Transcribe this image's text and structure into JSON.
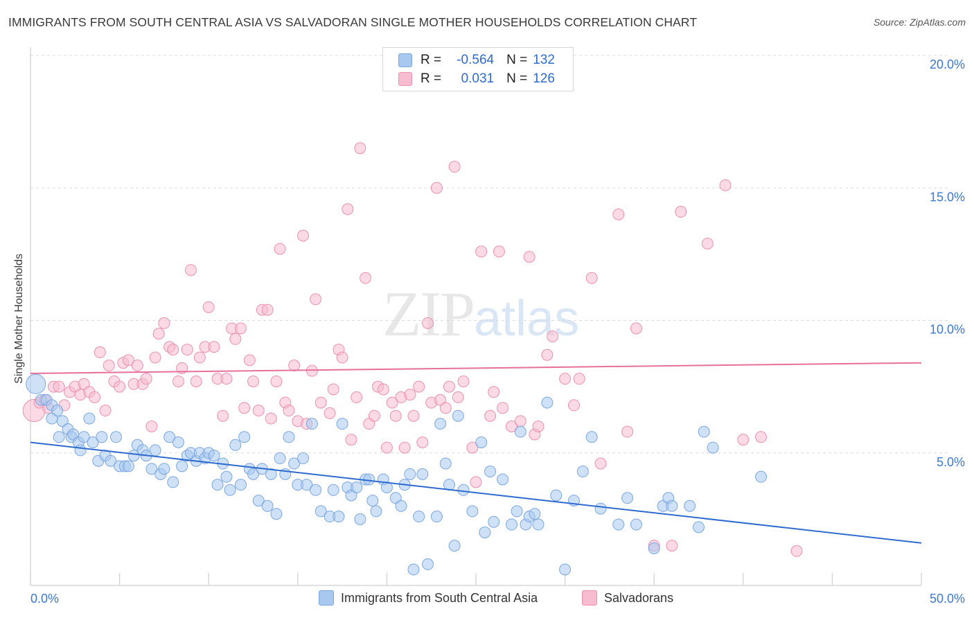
{
  "header": {
    "title": "IMMIGRANTS FROM SOUTH CENTRAL ASIA VS SALVADORAN SINGLE MOTHER HOUSEHOLDS CORRELATION CHART",
    "source": "Source: ZipAtlas.com"
  },
  "watermark": {
    "zip": "ZIP",
    "atlas": "atlas"
  },
  "legend": {
    "rows": [
      {
        "r_label": "R =",
        "r_value": "-0.564",
        "n_label": "N =",
        "n_value": "132",
        "color": "#a8c8f0",
        "border": "#7aa6e0"
      },
      {
        "r_label": "R =",
        "r_value": "0.031",
        "n_label": "N =",
        "n_value": "126",
        "color": "#f7bcd0",
        "border": "#ec8fb0"
      }
    ]
  },
  "bottom_legend": {
    "series_a": "Immigrants from South Central Asia",
    "series_b": "Salvadorans"
  },
  "chart_data": {
    "type": "scatter",
    "title": "IMMIGRANTS FROM SOUTH CENTRAL ASIA VS SALVADORAN SINGLE MOTHER HOUSEHOLDS CORRELATION CHART",
    "xlabel": "",
    "ylabel": "Single Mother Households",
    "xlim": [
      0,
      50
    ],
    "ylim": [
      0,
      20
    ],
    "x_tick_labels": [
      {
        "value": 0,
        "label": "0.0%"
      },
      {
        "value": 50,
        "label": "50.0%"
      }
    ],
    "y_tick_labels": [
      {
        "value": 5,
        "label": "5.0%"
      },
      {
        "value": 10,
        "label": "10.0%"
      },
      {
        "value": 15,
        "label": "15.0%"
      },
      {
        "value": 20,
        "label": "20.0%"
      }
    ],
    "series": [
      {
        "name": "Immigrants from South Central Asia",
        "color": "#7aa6e0",
        "fill": "#a8c8f0",
        "trend": {
          "x": [
            0,
            50
          ],
          "y": [
            5.4,
            1.6
          ],
          "color": "#2d6bd0"
        },
        "points": [
          [
            0.3,
            7.6
          ],
          [
            0.6,
            7.0
          ],
          [
            0.9,
            7.0
          ],
          [
            1.2,
            6.8
          ],
          [
            1.2,
            6.3
          ],
          [
            1.5,
            6.6
          ],
          [
            1.8,
            6.2
          ],
          [
            1.6,
            5.6
          ],
          [
            2.1,
            5.9
          ],
          [
            2.3,
            5.6
          ],
          [
            2.4,
            5.7
          ],
          [
            2.7,
            5.4
          ],
          [
            2.8,
            5.1
          ],
          [
            3.0,
            5.6
          ],
          [
            3.3,
            6.3
          ],
          [
            3.5,
            5.4
          ],
          [
            3.8,
            4.7
          ],
          [
            4.0,
            5.6
          ],
          [
            4.2,
            4.9
          ],
          [
            4.5,
            4.7
          ],
          [
            4.8,
            5.6
          ],
          [
            5.0,
            4.5
          ],
          [
            5.3,
            4.5
          ],
          [
            5.5,
            4.5
          ],
          [
            5.8,
            4.9
          ],
          [
            6.0,
            5.3
          ],
          [
            6.3,
            5.1
          ],
          [
            6.5,
            4.9
          ],
          [
            6.8,
            4.4
          ],
          [
            7.0,
            5.1
          ],
          [
            7.3,
            4.2
          ],
          [
            7.5,
            4.4
          ],
          [
            7.8,
            5.6
          ],
          [
            8.0,
            3.9
          ],
          [
            8.3,
            5.4
          ],
          [
            8.5,
            4.5
          ],
          [
            8.8,
            4.9
          ],
          [
            9.0,
            5.0
          ],
          [
            9.3,
            4.7
          ],
          [
            9.5,
            5.0
          ],
          [
            9.8,
            4.8
          ],
          [
            10.0,
            5.0
          ],
          [
            10.3,
            4.9
          ],
          [
            10.5,
            3.8
          ],
          [
            10.8,
            4.6
          ],
          [
            11.0,
            4.1
          ],
          [
            11.2,
            3.6
          ],
          [
            11.5,
            5.3
          ],
          [
            11.8,
            3.8
          ],
          [
            12.0,
            5.6
          ],
          [
            12.3,
            4.4
          ],
          [
            12.5,
            4.2
          ],
          [
            12.8,
            3.2
          ],
          [
            13.0,
            4.4
          ],
          [
            13.3,
            3.0
          ],
          [
            13.5,
            4.2
          ],
          [
            13.8,
            2.7
          ],
          [
            14.0,
            4.8
          ],
          [
            14.3,
            4.2
          ],
          [
            14.5,
            5.6
          ],
          [
            14.8,
            4.6
          ],
          [
            15.0,
            3.8
          ],
          [
            15.3,
            4.8
          ],
          [
            15.5,
            3.8
          ],
          [
            15.8,
            6.1
          ],
          [
            16.0,
            3.6
          ],
          [
            16.3,
            2.8
          ],
          [
            16.8,
            2.6
          ],
          [
            17.0,
            3.6
          ],
          [
            17.3,
            2.6
          ],
          [
            17.5,
            6.1
          ],
          [
            17.8,
            3.7
          ],
          [
            18.0,
            3.4
          ],
          [
            18.3,
            3.7
          ],
          [
            18.5,
            2.5
          ],
          [
            18.8,
            4.0
          ],
          [
            19.0,
            4.0
          ],
          [
            19.2,
            3.2
          ],
          [
            19.4,
            2.8
          ],
          [
            19.8,
            4.0
          ],
          [
            20.0,
            3.7
          ],
          [
            20.5,
            3.3
          ],
          [
            20.8,
            3.0
          ],
          [
            21.0,
            3.8
          ],
          [
            21.3,
            4.2
          ],
          [
            21.5,
            0.6
          ],
          [
            21.8,
            2.6
          ],
          [
            22.0,
            4.2
          ],
          [
            22.3,
            0.8
          ],
          [
            22.8,
            2.6
          ],
          [
            23.0,
            6.1
          ],
          [
            23.3,
            4.6
          ],
          [
            23.5,
            3.8
          ],
          [
            23.8,
            1.5
          ],
          [
            24.0,
            6.4
          ],
          [
            24.3,
            3.6
          ],
          [
            24.8,
            2.8
          ],
          [
            25.3,
            5.4
          ],
          [
            25.5,
            2.0
          ],
          [
            25.8,
            4.3
          ],
          [
            26.0,
            2.4
          ],
          [
            26.5,
            4.0
          ],
          [
            27.0,
            2.3
          ],
          [
            27.3,
            2.8
          ],
          [
            27.5,
            5.8
          ],
          [
            27.8,
            2.3
          ],
          [
            28.0,
            2.6
          ],
          [
            28.3,
            2.7
          ],
          [
            28.5,
            2.3
          ],
          [
            29.0,
            6.9
          ],
          [
            29.5,
            3.4
          ],
          [
            30.0,
            0.6
          ],
          [
            30.5,
            3.2
          ],
          [
            31.0,
            4.3
          ],
          [
            31.5,
            5.6
          ],
          [
            32.0,
            2.9
          ],
          [
            33.0,
            2.3
          ],
          [
            33.5,
            3.3
          ],
          [
            34.0,
            2.3
          ],
          [
            35.0,
            1.4
          ],
          [
            35.5,
            3.0
          ],
          [
            35.8,
            3.3
          ],
          [
            36.0,
            3.0
          ],
          [
            37.0,
            3.0
          ],
          [
            37.5,
            2.2
          ],
          [
            37.8,
            5.8
          ],
          [
            38.3,
            5.2
          ],
          [
            41.0,
            4.1
          ]
        ]
      },
      {
        "name": "Salvadorans",
        "color": "#ec8fb0",
        "fill": "#f7bcd0",
        "trend": {
          "x": [
            0,
            50
          ],
          "y": [
            8.0,
            8.4
          ],
          "color": "#e6709a"
        },
        "points": [
          [
            0.2,
            6.6
          ],
          [
            0.5,
            6.9
          ],
          [
            0.8,
            7.0
          ],
          [
            1.0,
            6.7
          ],
          [
            1.3,
            7.5
          ],
          [
            1.6,
            7.5
          ],
          [
            1.9,
            6.8
          ],
          [
            2.2,
            7.3
          ],
          [
            2.5,
            7.5
          ],
          [
            2.8,
            7.2
          ],
          [
            3.0,
            7.6
          ],
          [
            3.3,
            7.3
          ],
          [
            3.6,
            7.1
          ],
          [
            3.9,
            8.8
          ],
          [
            4.2,
            6.6
          ],
          [
            4.4,
            8.3
          ],
          [
            4.7,
            7.7
          ],
          [
            5.0,
            7.5
          ],
          [
            5.2,
            8.4
          ],
          [
            5.5,
            8.5
          ],
          [
            5.8,
            7.6
          ],
          [
            6.0,
            8.3
          ],
          [
            6.3,
            7.6
          ],
          [
            6.5,
            7.8
          ],
          [
            6.8,
            6.0
          ],
          [
            7.0,
            8.6
          ],
          [
            7.2,
            9.5
          ],
          [
            7.5,
            9.9
          ],
          [
            7.8,
            9.0
          ],
          [
            8.0,
            8.9
          ],
          [
            8.3,
            7.7
          ],
          [
            8.5,
            8.2
          ],
          [
            8.8,
            8.9
          ],
          [
            9.0,
            11.9
          ],
          [
            9.3,
            7.7
          ],
          [
            9.5,
            8.6
          ],
          [
            9.8,
            9.0
          ],
          [
            10.0,
            10.5
          ],
          [
            10.3,
            9.0
          ],
          [
            10.5,
            7.8
          ],
          [
            10.8,
            6.4
          ],
          [
            11.0,
            7.8
          ],
          [
            11.3,
            9.7
          ],
          [
            11.5,
            9.3
          ],
          [
            11.8,
            9.7
          ],
          [
            12.0,
            6.7
          ],
          [
            12.3,
            8.5
          ],
          [
            12.5,
            7.7
          ],
          [
            12.8,
            6.6
          ],
          [
            13.0,
            10.4
          ],
          [
            13.3,
            10.4
          ],
          [
            13.5,
            6.3
          ],
          [
            13.8,
            7.7
          ],
          [
            14.0,
            12.7
          ],
          [
            14.3,
            6.9
          ],
          [
            14.5,
            6.6
          ],
          [
            14.8,
            8.3
          ],
          [
            15.0,
            6.2
          ],
          [
            15.3,
            13.2
          ],
          [
            15.5,
            6.1
          ],
          [
            15.8,
            8.1
          ],
          [
            16.0,
            10.8
          ],
          [
            16.3,
            6.9
          ],
          [
            16.8,
            6.5
          ],
          [
            17.0,
            7.4
          ],
          [
            17.3,
            8.9
          ],
          [
            17.5,
            8.6
          ],
          [
            17.8,
            14.2
          ],
          [
            18.0,
            5.5
          ],
          [
            18.3,
            7.1
          ],
          [
            18.5,
            16.5
          ],
          [
            18.8,
            11.6
          ],
          [
            19.0,
            6.1
          ],
          [
            19.3,
            6.4
          ],
          [
            19.5,
            7.5
          ],
          [
            19.8,
            7.4
          ],
          [
            20.0,
            5.2
          ],
          [
            20.3,
            6.9
          ],
          [
            20.5,
            6.4
          ],
          [
            20.8,
            7.1
          ],
          [
            21.0,
            5.2
          ],
          [
            21.3,
            7.2
          ],
          [
            21.5,
            6.4
          ],
          [
            21.8,
            7.5
          ],
          [
            22.0,
            5.4
          ],
          [
            22.3,
            9.9
          ],
          [
            22.5,
            6.9
          ],
          [
            22.8,
            15.0
          ],
          [
            23.0,
            7.0
          ],
          [
            23.3,
            6.7
          ],
          [
            23.5,
            7.5
          ],
          [
            23.8,
            15.8
          ],
          [
            24.0,
            7.1
          ],
          [
            24.3,
            7.7
          ],
          [
            24.8,
            5.2
          ],
          [
            25.0,
            3.9
          ],
          [
            25.3,
            12.6
          ],
          [
            25.8,
            6.4
          ],
          [
            26.0,
            7.3
          ],
          [
            26.3,
            12.6
          ],
          [
            26.5,
            6.7
          ],
          [
            27.0,
            6.0
          ],
          [
            27.5,
            6.2
          ],
          [
            28.0,
            12.4
          ],
          [
            28.3,
            5.7
          ],
          [
            28.5,
            6.0
          ],
          [
            29.0,
            8.7
          ],
          [
            29.3,
            9.4
          ],
          [
            30.0,
            7.8
          ],
          [
            30.5,
            6.8
          ],
          [
            30.8,
            7.8
          ],
          [
            31.5,
            11.6
          ],
          [
            32.0,
            4.6
          ],
          [
            33.0,
            14.0
          ],
          [
            33.5,
            5.8
          ],
          [
            34.0,
            9.7
          ],
          [
            35.0,
            1.5
          ],
          [
            36.0,
            1.5
          ],
          [
            36.5,
            14.1
          ],
          [
            38.0,
            12.9
          ],
          [
            39.0,
            15.1
          ],
          [
            40.0,
            5.5
          ],
          [
            41.0,
            5.6
          ],
          [
            43.0,
            1.3
          ]
        ]
      }
    ]
  }
}
